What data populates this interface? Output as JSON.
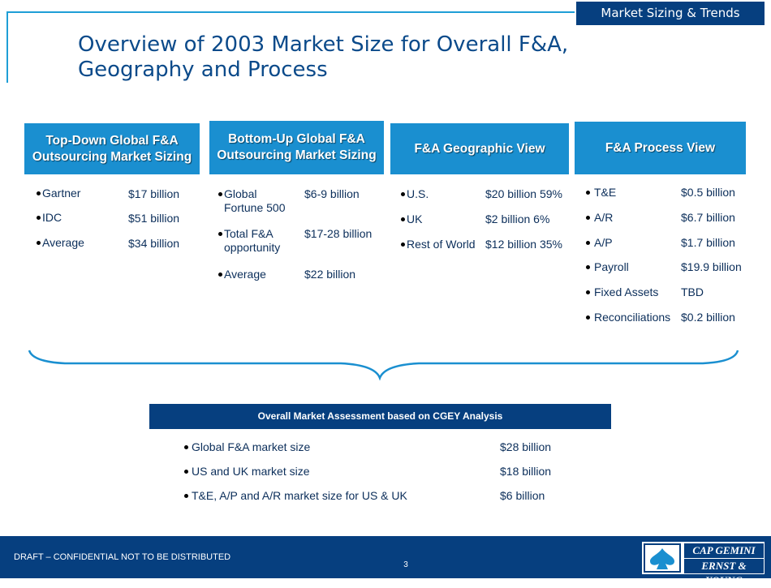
{
  "header": {
    "section_tag": "Market Sizing & Trends",
    "title": "Overview of 2003 Market Size for Overall F&A, Geography and Process"
  },
  "columns": {
    "top_down": {
      "heading": "Top-Down Global F&A Outsourcing Market Sizing",
      "items": [
        {
          "label": "Gartner",
          "value": "$17 billion"
        },
        {
          "label": "IDC",
          "value": "$51 billion"
        },
        {
          "label": "Average",
          "value": "$34 billion"
        }
      ]
    },
    "bottom_up": {
      "heading": "Bottom-Up Global F&A Outsourcing Market Sizing",
      "items": [
        {
          "label": "Global Fortune 500",
          "value": "$6-9 billion"
        },
        {
          "label": "Total F&A opportunity",
          "value": "$17-28 billion"
        },
        {
          "label": "Average",
          "value": "$22 billion"
        }
      ]
    },
    "geographic": {
      "heading": "F&A Geographic View",
      "items": [
        {
          "label": "U.S.",
          "value": "$20 billion 59%"
        },
        {
          "label": "UK",
          "value": "$2 billion 6%"
        },
        {
          "label": "Rest of World",
          "value": "$12 billion 35%"
        }
      ]
    },
    "process": {
      "heading": "F&A Process View",
      "items": [
        {
          "label": "T&E",
          "value": "$0.5 billion"
        },
        {
          "label": "A/R",
          "value": "$6.7 billion"
        },
        {
          "label": "A/P",
          "value": "$1.7 billion"
        },
        {
          "label": "Payroll",
          "value": "$19.9 billion"
        },
        {
          "label": "Fixed Assets",
          "value": "TBD"
        },
        {
          "label": "Reconciliations",
          "value": "$0.2 billion"
        }
      ]
    }
  },
  "assessment": {
    "heading": "Overall Market Assessment based on CGEY Analysis",
    "items": [
      {
        "label": "Global F&A market size",
        "value": "$28 billion"
      },
      {
        "label": "US and UK market size",
        "value": "$18 billion"
      },
      {
        "label": "T&E, A/P and A/R market size for US & UK",
        "value": "$6 billion"
      }
    ]
  },
  "footer": {
    "confidential": "DRAFT – CONFIDENTIAL NOT TO BE DISTRIBUTED",
    "page_number": "3",
    "logo_line1": "CAP GEMINI",
    "logo_line2": "ERNST & YOUNG"
  },
  "colors": {
    "navy": "#063f7f",
    "header_blue": "#1a8fd0",
    "accent_line": "#1e9ed6",
    "title_blue": "#0b4a8a"
  }
}
